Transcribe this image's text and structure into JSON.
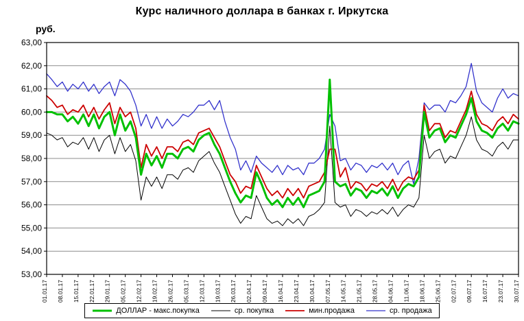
{
  "page": {
    "title": "Курс наличного доллара в банках г. Иркутска",
    "y_axis_title": "руб."
  },
  "chart_data": {
    "type": "line",
    "title": "Курс наличного доллара в банках г. Иркутска",
    "ylabel": "руб.",
    "xlabel": "",
    "ylim": [
      53,
      63
    ],
    "grid": true,
    "legend_position": "bottom",
    "points_per_tick": 3,
    "y_ticks": [
      {
        "value": 63,
        "label": "63,00"
      },
      {
        "value": 62,
        "label": "62,00"
      },
      {
        "value": 61,
        "label": "61,00"
      },
      {
        "value": 60,
        "label": "60,00"
      },
      {
        "value": 59,
        "label": "59,00"
      },
      {
        "value": 58,
        "label": "58,00"
      },
      {
        "value": 57,
        "label": "57,00"
      },
      {
        "value": 56,
        "label": "56,00"
      },
      {
        "value": 55,
        "label": "55,00"
      },
      {
        "value": 54,
        "label": "54,00"
      },
      {
        "value": 53,
        "label": "53,00"
      }
    ],
    "x_tick_labels": [
      "01.01.17",
      "08.01.17",
      "15.01.17",
      "22.01.17",
      "29.01.17",
      "05.02.17",
      "12.02.17",
      "19.02.17",
      "26.02.17",
      "05.03.17",
      "12.03.17",
      "19.03.17",
      "26.03.17",
      "02.04.17",
      "09.04.17",
      "16.04.17",
      "23.04.17",
      "30.04.17",
      "07.05.17",
      "14.05.17",
      "21.05.17",
      "28.05.17",
      "04.06.17",
      "11.06.17",
      "18.06.17",
      "25.06.17",
      "02.07.17",
      "09.07.17",
      "16.07.17",
      "23.07.17",
      "30.07.17"
    ],
    "draw_order": [
      1,
      3,
      2,
      0
    ],
    "series": [
      {
        "name": "ДОЛЛАР - макс.покупка",
        "color": "#00c000",
        "width": 3,
        "values": [
          60.0,
          60.0,
          59.9,
          59.9,
          59.6,
          59.8,
          59.5,
          59.9,
          59.4,
          59.9,
          59.3,
          59.8,
          60.0,
          59.0,
          59.9,
          59.2,
          59.6,
          58.9,
          57.3,
          58.2,
          57.7,
          58.1,
          57.6,
          58.2,
          58.2,
          58.0,
          58.4,
          58.5,
          58.3,
          58.8,
          59.0,
          59.1,
          58.6,
          58.2,
          57.6,
          57.0,
          56.5,
          56.1,
          56.4,
          56.3,
          57.4,
          56.9,
          56.3,
          56.0,
          56.2,
          55.9,
          56.3,
          56.0,
          56.3,
          55.9,
          56.4,
          56.5,
          56.6,
          57.0,
          61.4,
          57.0,
          56.8,
          56.9,
          56.4,
          56.7,
          56.6,
          56.3,
          56.6,
          56.5,
          56.7,
          56.4,
          56.8,
          56.3,
          56.7,
          56.9,
          56.8,
          57.2,
          60.0,
          58.9,
          59.2,
          59.3,
          58.7,
          59.0,
          58.9,
          59.4,
          59.9,
          60.6,
          59.6,
          59.2,
          59.1,
          58.9,
          59.3,
          59.5,
          59.2,
          59.6,
          59.5
        ]
      },
      {
        "name": "ср. покупка",
        "color": "#000000",
        "width": 1,
        "values": [
          59.1,
          59.0,
          58.8,
          58.9,
          58.5,
          58.7,
          58.6,
          58.9,
          58.4,
          58.9,
          58.3,
          58.8,
          59.0,
          58.2,
          58.9,
          58.3,
          58.6,
          57.9,
          56.2,
          57.2,
          56.8,
          57.2,
          56.7,
          57.3,
          57.3,
          57.1,
          57.5,
          57.6,
          57.4,
          57.9,
          58.1,
          58.3,
          57.8,
          57.4,
          56.8,
          56.2,
          55.6,
          55.2,
          55.5,
          55.4,
          56.4,
          55.9,
          55.4,
          55.2,
          55.3,
          55.1,
          55.4,
          55.2,
          55.4,
          55.1,
          55.5,
          55.6,
          55.8,
          56.1,
          59.4,
          56.1,
          55.9,
          56.0,
          55.5,
          55.8,
          55.7,
          55.5,
          55.7,
          55.6,
          55.8,
          55.6,
          55.9,
          55.5,
          55.8,
          56.0,
          55.9,
          56.3,
          59.0,
          58.0,
          58.3,
          58.4,
          57.8,
          58.1,
          58.0,
          58.5,
          59.0,
          59.8,
          58.8,
          58.4,
          58.3,
          58.1,
          58.5,
          58.7,
          58.4,
          58.8,
          58.8
        ]
      },
      {
        "name": "мин.продажа",
        "color": "#cc0000",
        "width": 1.8,
        "values": [
          60.7,
          60.5,
          60.2,
          60.3,
          59.9,
          60.1,
          60.0,
          60.3,
          59.8,
          60.2,
          59.7,
          60.1,
          60.4,
          59.5,
          60.2,
          59.8,
          60.0,
          59.3,
          57.6,
          58.6,
          58.1,
          58.5,
          58.0,
          58.5,
          58.5,
          58.3,
          58.7,
          58.8,
          58.6,
          59.1,
          59.2,
          59.3,
          58.9,
          58.5,
          57.9,
          57.3,
          57.0,
          56.5,
          56.8,
          56.7,
          57.7,
          57.2,
          56.7,
          56.4,
          56.6,
          56.3,
          56.7,
          56.4,
          56.7,
          56.3,
          56.8,
          56.9,
          57.0,
          57.4,
          58.4,
          58.4,
          57.2,
          57.6,
          56.7,
          57.0,
          56.9,
          56.6,
          56.9,
          56.8,
          57.0,
          56.7,
          57.1,
          56.6,
          57.0,
          57.2,
          57.1,
          57.5,
          60.3,
          59.2,
          59.5,
          59.5,
          58.9,
          59.2,
          59.1,
          59.6,
          60.1,
          60.9,
          59.9,
          59.5,
          59.4,
          59.2,
          59.6,
          59.8,
          59.5,
          59.9,
          59.7
        ]
      },
      {
        "name": "ср. продажа",
        "color": "#3333cc",
        "width": 1.3,
        "values": [
          61.65,
          61.4,
          61.1,
          61.3,
          60.9,
          61.2,
          61.0,
          61.3,
          60.9,
          61.2,
          60.8,
          61.1,
          61.3,
          60.7,
          61.4,
          61.2,
          60.9,
          60.3,
          59.4,
          59.9,
          59.3,
          59.8,
          59.3,
          59.7,
          59.4,
          59.6,
          59.9,
          59.8,
          60.0,
          60.3,
          60.3,
          60.5,
          60.1,
          60.5,
          59.6,
          58.9,
          58.4,
          57.5,
          57.9,
          57.4,
          58.1,
          57.8,
          57.6,
          57.4,
          57.7,
          57.3,
          57.7,
          57.5,
          57.6,
          57.3,
          57.8,
          57.8,
          58.0,
          58.4,
          59.9,
          59.4,
          57.9,
          58.0,
          57.5,
          57.8,
          57.7,
          57.4,
          57.7,
          57.6,
          57.8,
          57.5,
          57.8,
          57.3,
          57.7,
          57.9,
          56.9,
          58.0,
          60.4,
          60.1,
          60.3,
          60.3,
          60.0,
          60.5,
          60.4,
          60.7,
          61.1,
          62.1,
          60.9,
          60.4,
          60.2,
          60.0,
          60.6,
          61.0,
          60.6,
          60.8,
          60.7
        ]
      }
    ]
  }
}
